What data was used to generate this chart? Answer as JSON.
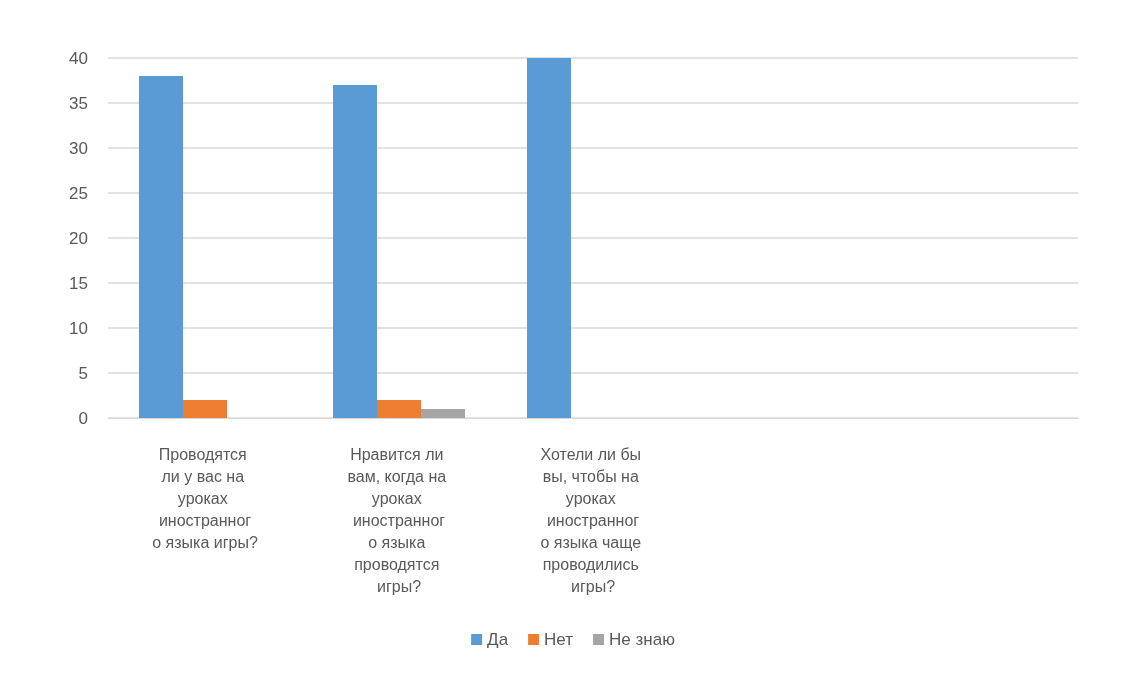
{
  "chart_data": {
    "type": "bar",
    "categories": [
      "Проводятся ли у вас на уроках иностранного языка игры?",
      "Нравится ли вам, когда на уроках иностранного языка проводятся игры?",
      "Хотели ли бы вы, чтобы на уроках иностранного языка чаще проводились игры?",
      null,
      null
    ],
    "series": [
      {
        "name": "Да",
        "color": "#5b9bd5",
        "values": [
          38,
          37,
          40,
          null,
          null
        ]
      },
      {
        "name": "Нет",
        "color": "#ed7d31",
        "values": [
          2,
          2,
          0,
          null,
          null
        ]
      },
      {
        "name": "Не знаю",
        "color": "#a5a5a5",
        "values": [
          0,
          1,
          0,
          null,
          null
        ]
      }
    ],
    "ylim": [
      0,
      40
    ],
    "yticks": [
      0,
      5,
      10,
      15,
      20,
      25,
      30,
      35,
      40
    ],
    "grid": "y",
    "legend": "bottom"
  }
}
